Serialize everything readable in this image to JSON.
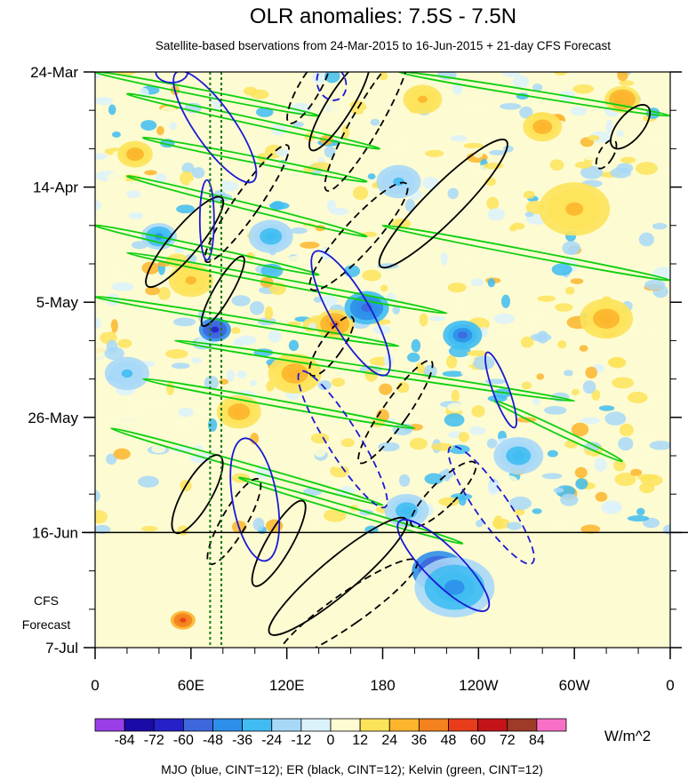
{
  "chart_data": {
    "type": "heatmap",
    "title": "OLR anomalies: 7.5S - 7.5N",
    "subtitle": "Satellite-based bservations from 24-Mar-2015 to 16-Jun-2015 + 21-day CFS Forecast",
    "x_ticks": [
      {
        "lon": 0,
        "label": "0"
      },
      {
        "lon": 60,
        "label": "60E"
      },
      {
        "lon": 120,
        "label": "120E"
      },
      {
        "lon": 180,
        "label": "180"
      },
      {
        "lon": 240,
        "label": "120W"
      },
      {
        "lon": 300,
        "label": "60W"
      },
      {
        "lon": 360,
        "label": "0"
      }
    ],
    "xlim": [
      0,
      360
    ],
    "y_ticks": [
      {
        "day": 0,
        "label": "24-Mar"
      },
      {
        "day": 21,
        "label": "14-Apr"
      },
      {
        "day": 42,
        "label": "5-May"
      },
      {
        "day": 63,
        "label": "26-May"
      },
      {
        "day": 84,
        "label": "16-Jun"
      },
      {
        "day": 105,
        "label": "7-Jul"
      }
    ],
    "ylim_days": [
      0,
      105
    ],
    "forecast_start_day": 84,
    "forecast_label": [
      "CFS",
      "Forecast"
    ],
    "reference_lines_lon": [
      72,
      79
    ],
    "colorbar": {
      "labels": [
        "-84",
        "-72",
        "-60",
        "-48",
        "-36",
        "-24",
        "-12",
        "0",
        "12",
        "24",
        "36",
        "48",
        "60",
        "72",
        "84"
      ],
      "colors": [
        "#9a3ee8",
        "#1a0aa8",
        "#2520c8",
        "#3e67de",
        "#2d8fea",
        "#40bcf2",
        "#a8d8f8",
        "#dcf2fb",
        "#fdfbd2",
        "#fde35a",
        "#fcb52c",
        "#f4821e",
        "#e83c1a",
        "#c4141a",
        "#9e3a28",
        "#f870c6"
      ],
      "units": "W/m^2"
    },
    "footer": "MJO (blue, CINT=12); ER (black, CINT=12); Kelvin (green, CINT=12)",
    "colors": {
      "mjo": "#1a1ad6",
      "er": "#000000",
      "kelvin": "#10d010",
      "reference": "#1a7a1a"
    },
    "kelvin_bands": [
      {
        "lon": [
          0,
          140
        ],
        "day": [
          0,
          8
        ]
      },
      {
        "lon": [
          20,
          178
        ],
        "day": [
          4,
          14
        ]
      },
      {
        "lon": [
          30,
          170
        ],
        "day": [
          12,
          20
        ]
      },
      {
        "lon": [
          20,
          170
        ],
        "day": [
          19,
          30
        ]
      },
      {
        "lon": [
          0,
          140
        ],
        "day": [
          28,
          37
        ]
      },
      {
        "lon": [
          20,
          220
        ],
        "day": [
          33,
          44
        ]
      },
      {
        "lon": [
          0,
          190
        ],
        "day": [
          41,
          50
        ]
      },
      {
        "lon": [
          50,
          300
        ],
        "day": [
          49,
          60
        ]
      },
      {
        "lon": [
          30,
          200
        ],
        "day": [
          56,
          65
        ]
      },
      {
        "lon": [
          10,
          180
        ],
        "day": [
          65,
          79
        ]
      },
      {
        "lon": [
          90,
          230
        ],
        "day": [
          74,
          86
        ]
      },
      {
        "lon": [
          180,
          360
        ],
        "day": [
          28,
          38
        ]
      },
      {
        "lon": [
          190,
          360
        ],
        "day": [
          0,
          8
        ]
      },
      {
        "lon": [
          250,
          330
        ],
        "day": [
          60,
          71
        ]
      }
    ],
    "mjo_ellipses": [
      {
        "lon": 75,
        "day": 10,
        "rx": 22,
        "ry": 75,
        "angle": -35,
        "dash": false
      },
      {
        "lon": 160,
        "day": 44,
        "rx": 22,
        "ry": 80,
        "angle": -30,
        "dash": false
      },
      {
        "lon": 155,
        "day": 67,
        "rx": 18,
        "ry": 90,
        "angle": -32,
        "dash": true
      },
      {
        "lon": 100,
        "day": 78,
        "rx": 25,
        "ry": 70,
        "angle": -10,
        "dash": false
      },
      {
        "lon": 218,
        "day": 90,
        "rx": 20,
        "ry": 70,
        "angle": -45,
        "dash": false
      },
      {
        "lon": 248,
        "day": 79,
        "rx": 18,
        "ry": 80,
        "angle": -35,
        "dash": true
      },
      {
        "lon": 254,
        "day": 58,
        "rx": 9,
        "ry": 45,
        "angle": -20,
        "dash": false
      },
      {
        "lon": 70,
        "day": 27,
        "rx": 8,
        "ry": 45,
        "angle": 0,
        "dash": false
      },
      {
        "lon": 48,
        "day": 0,
        "rx": 18,
        "ry": 12,
        "angle": 0,
        "dash": false
      },
      {
        "lon": 148,
        "day": 2,
        "rx": 16,
        "ry": 20,
        "angle": -20,
        "dash": true
      }
    ],
    "er_ellipses": [
      {
        "lon": 170,
        "day": 9,
        "rx": 16,
        "ry": 90,
        "angle": 30,
        "dash": true
      },
      {
        "lon": 134,
        "day": 3,
        "rx": 12,
        "ry": 45,
        "angle": 30,
        "dash": true
      },
      {
        "lon": 153,
        "day": 6,
        "rx": 14,
        "ry": 60,
        "angle": 32,
        "dash": false
      },
      {
        "lon": 218,
        "day": 24,
        "rx": 20,
        "ry": 100,
        "angle": 45,
        "dash": false
      },
      {
        "lon": 165,
        "day": 30,
        "rx": 18,
        "ry": 80,
        "angle": 42,
        "dash": true
      },
      {
        "lon": 95,
        "day": 24,
        "rx": 14,
        "ry": 80,
        "angle": 35,
        "dash": true
      },
      {
        "lon": 56,
        "day": 31,
        "rx": 16,
        "ry": 65,
        "angle": 40,
        "dash": false
      },
      {
        "lon": 80,
        "day": 40,
        "rx": 10,
        "ry": 45,
        "angle": 30,
        "dash": false
      },
      {
        "lon": 148,
        "day": 50,
        "rx": 12,
        "ry": 40,
        "angle": 35,
        "dash": true
      },
      {
        "lon": 188,
        "day": 62,
        "rx": 14,
        "ry": 70,
        "angle": 35,
        "dash": true
      },
      {
        "lon": 64,
        "day": 77,
        "rx": 16,
        "ry": 50,
        "angle": 30,
        "dash": false
      },
      {
        "lon": 87,
        "day": 82,
        "rx": 14,
        "ry": 55,
        "angle": 30,
        "dash": true
      },
      {
        "lon": 115,
        "day": 86,
        "rx": 14,
        "ry": 55,
        "angle": 30,
        "dash": false
      },
      {
        "lon": 152,
        "day": 92,
        "rx": 20,
        "ry": 100,
        "angle": 50,
        "dash": false
      },
      {
        "lon": 158,
        "day": 98,
        "rx": 18,
        "ry": 95,
        "angle": 55,
        "dash": true
      },
      {
        "lon": 218,
        "day": 77,
        "rx": 14,
        "ry": 50,
        "angle": 45,
        "dash": true
      },
      {
        "lon": 335,
        "day": 10,
        "rx": 14,
        "ry": 30,
        "angle": 40,
        "dash": false
      },
      {
        "lon": 320,
        "day": 15,
        "rx": 8,
        "ry": 18,
        "angle": 30,
        "dash": true
      }
    ],
    "anomaly_blobs": [
      {
        "lon": 40,
        "day": 30,
        "r": 20,
        "val": -40
      },
      {
        "lon": 75,
        "day": 47,
        "r": 18,
        "val": -70
      },
      {
        "lon": 150,
        "day": 46,
        "r": 22,
        "val": 40
      },
      {
        "lon": 170,
        "day": 43,
        "r": 25,
        "val": -55
      },
      {
        "lon": 230,
        "day": 48,
        "r": 22,
        "val": -50
      },
      {
        "lon": 215,
        "day": 91,
        "r": 30,
        "val": -75
      },
      {
        "lon": 225,
        "day": 94,
        "r": 45,
        "val": -40
      },
      {
        "lon": 25,
        "day": 15,
        "r": 20,
        "val": 30
      },
      {
        "lon": 60,
        "day": 38,
        "r": 25,
        "val": 25
      },
      {
        "lon": 125,
        "day": 55,
        "r": 30,
        "val": 30
      },
      {
        "lon": 300,
        "day": 25,
        "r": 40,
        "val": 25
      },
      {
        "lon": 320,
        "day": 45,
        "r": 30,
        "val": 30
      },
      {
        "lon": 330,
        "day": 5,
        "r": 20,
        "val": 35
      },
      {
        "lon": 55,
        "day": 100,
        "r": 14,
        "val": 55
      },
      {
        "lon": 205,
        "day": 5,
        "r": 22,
        "val": 25
      },
      {
        "lon": 265,
        "day": 70,
        "r": 28,
        "val": -30
      },
      {
        "lon": 90,
        "day": 62,
        "r": 25,
        "val": 30
      },
      {
        "lon": 110,
        "day": 30,
        "r": 25,
        "val": -30
      },
      {
        "lon": 20,
        "day": 55,
        "r": 25,
        "val": -25
      },
      {
        "lon": 190,
        "day": 20,
        "r": 25,
        "val": -25
      },
      {
        "lon": 280,
        "day": 10,
        "r": 22,
        "val": 30
      },
      {
        "lon": 195,
        "day": 80,
        "r": 25,
        "val": -30
      }
    ]
  }
}
